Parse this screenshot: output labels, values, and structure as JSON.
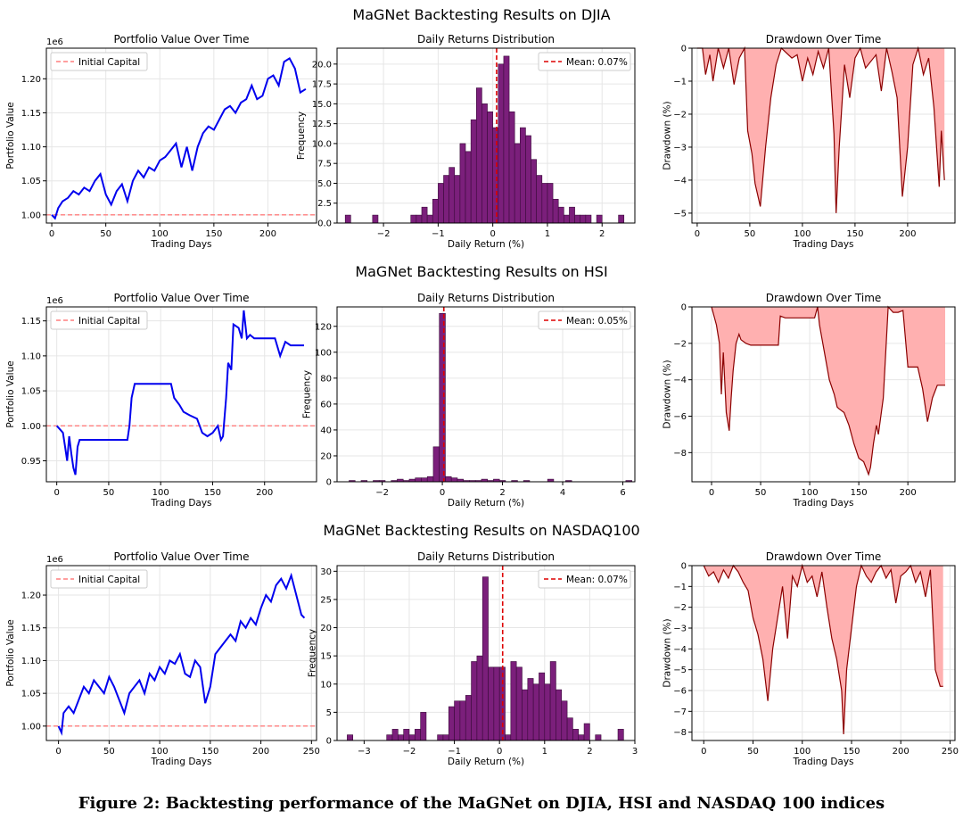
{
  "caption": "Figure 2: Backtesting performance of the MaGNet on DJIA, HSI and NASDAQ 100 indices",
  "colors": {
    "portfolio": "#0000ee",
    "initial": "#ff7f7f",
    "hist_fill": "#7b1f7b",
    "hist_edge": "#3a0a3a",
    "mean": "#dd0000",
    "drawdown_fill": "#ffb0b0",
    "drawdown_line": "#8b0000"
  },
  "rows": [
    {
      "title": "MaGNet Backtesting Results on DJIA",
      "portfolio": {
        "title": "Portfolio Value Over Time",
        "xlabel": "Trading Days",
        "ylabel": "Portfolio Value",
        "offset_label": "1e6",
        "legend": "Initial Capital",
        "xlim": [
          -5,
          245
        ],
        "ylim": [
          0.988,
          1.245
        ],
        "xticks": [
          "0",
          "50",
          "100",
          "150",
          "200"
        ],
        "yticks": [
          "1.00",
          "1.05",
          "1.10",
          "1.15",
          "1.20"
        ],
        "initial": 1.0
      },
      "returns": {
        "title": "Daily Returns Distribution",
        "xlabel": "Daily Return (%)",
        "ylabel": "Frequency",
        "legend": "Mean: 0.07%",
        "mean": 0.07,
        "xlim": [
          -2.85,
          2.6
        ],
        "ylim": [
          0,
          22
        ],
        "xticks": [
          "−2",
          "−1",
          "0",
          "1",
          "2"
        ],
        "yticks": [
          "0.0",
          "2.5",
          "5.0",
          "7.5",
          "10.0",
          "12.5",
          "15.0",
          "17.5",
          "20.0"
        ]
      },
      "drawdown": {
        "title": "Drawdown Over Time",
        "xlabel": "Trading Days",
        "ylabel": "Drawdown (%)",
        "xlim": [
          -5,
          245
        ],
        "ylim": [
          -5.3,
          0
        ],
        "xticks": [
          "0",
          "50",
          "100",
          "150",
          "200"
        ],
        "yticks": [
          "0",
          "−1",
          "−2",
          "−3",
          "−4",
          "−5"
        ]
      }
    },
    {
      "title": "MaGNet Backtesting Results on HSI",
      "portfolio": {
        "title": "Portfolio Value Over Time",
        "xlabel": "Trading Days",
        "ylabel": "Portfolio Value",
        "offset_label": "1e6",
        "legend": "Initial Capital",
        "xlim": [
          -10,
          250
        ],
        "ylim": [
          0.92,
          1.17
        ],
        "xticks": [
          "0",
          "50",
          "100",
          "150",
          "200"
        ],
        "yticks": [
          "0.95",
          "1.00",
          "1.05",
          "1.10",
          "1.15"
        ],
        "initial": 1.0
      },
      "returns": {
        "title": "Daily Returns Distribution",
        "xlabel": "Daily Return (%)",
        "ylabel": "Frequency",
        "legend": "Mean: 0.05%",
        "mean": 0.05,
        "xlim": [
          -3.5,
          6.4
        ],
        "ylim": [
          0,
          135
        ],
        "xticks": [
          "−2",
          "0",
          "2",
          "4",
          "6"
        ],
        "yticks": [
          "0",
          "20",
          "40",
          "60",
          "80",
          "100",
          "120"
        ]
      },
      "drawdown": {
        "title": "Drawdown Over Time",
        "xlabel": "Trading Days",
        "ylabel": "Drawdown (%)",
        "xlim": [
          -20,
          248
        ],
        "ylim": [
          -9.6,
          0
        ],
        "xticks": [
          "0",
          "50",
          "100",
          "150",
          "200"
        ],
        "yticks": [
          "0",
          "−2",
          "−4",
          "−6",
          "−8"
        ]
      }
    },
    {
      "title": "MaGNet Backtesting Results on NASDAQ100",
      "portfolio": {
        "title": "Portfolio Value Over Time",
        "xlabel": "Trading Days",
        "ylabel": "Portfolio Value",
        "offset_label": "1e6",
        "legend": "Initial Capital",
        "xlim": [
          -12,
          255
        ],
        "ylim": [
          0.978,
          1.245
        ],
        "xticks": [
          "0",
          "50",
          "100",
          "150",
          "200",
          "250"
        ],
        "yticks": [
          "1.00",
          "1.05",
          "1.10",
          "1.15",
          "1.20"
        ],
        "initial": 1.0
      },
      "returns": {
        "title": "Daily Returns Distribution",
        "xlabel": "Daily Return (%)",
        "ylabel": "Frequency",
        "legend": "Mean: 0.07%",
        "mean": 0.07,
        "xlim": [
          -3.6,
          3.0
        ],
        "ylim": [
          0,
          31
        ],
        "xticks": [
          "−3",
          "−2",
          "−1",
          "0",
          "1",
          "2",
          "3"
        ],
        "yticks": [
          "0",
          "5",
          "10",
          "15",
          "20",
          "25",
          "30"
        ]
      },
      "drawdown": {
        "title": "Drawdown Over Time",
        "xlabel": "Trading Days",
        "ylabel": "Drawdown (%)",
        "xlim": [
          -12,
          255
        ],
        "ylim": [
          -8.4,
          0
        ],
        "xticks": [
          "0",
          "50",
          "100",
          "150",
          "200",
          "250"
        ],
        "yticks": [
          "0",
          "−1",
          "−2",
          "−3",
          "−4",
          "−5",
          "−6",
          "−7",
          "−8"
        ]
      }
    }
  ],
  "chart_data": [
    {
      "type": "line",
      "x": [
        0,
        3,
        6,
        10,
        15,
        20,
        25,
        30,
        35,
        40,
        45,
        50,
        55,
        60,
        65,
        70,
        75,
        80,
        85,
        90,
        95,
        100,
        105,
        110,
        115,
        120,
        125,
        130,
        135,
        140,
        145,
        150,
        155,
        160,
        165,
        170,
        175,
        180,
        185,
        190,
        195,
        200,
        205,
        210,
        215,
        220,
        225,
        230,
        235
      ],
      "series": [
        {
          "values": [
            1.0,
            0.995,
            1.01,
            1.02,
            1.025,
            1.035,
            1.03,
            1.04,
            1.035,
            1.05,
            1.06,
            1.03,
            1.015,
            1.035,
            1.045,
            1.02,
            1.05,
            1.065,
            1.055,
            1.07,
            1.065,
            1.08,
            1.085,
            1.095,
            1.105,
            1.07,
            1.1,
            1.065,
            1.1,
            1.12,
            1.13,
            1.125,
            1.14,
            1.155,
            1.16,
            1.15,
            1.165,
            1.17,
            1.19,
            1.17,
            1.175,
            1.2,
            1.205,
            1.19,
            1.225,
            1.23,
            1.215,
            1.18,
            1.185
          ]
        }
      ]
    },
    {
      "type": "bar",
      "bin_width": 0.1,
      "bin_starts": [
        -2.7,
        -2.2,
        -1.5,
        -1.4,
        -1.3,
        -1.2,
        -1.1,
        -1.0,
        -0.9,
        -0.8,
        -0.7,
        -0.6,
        -0.5,
        -0.4,
        -0.3,
        -0.2,
        -0.1,
        0.0,
        0.1,
        0.2,
        0.3,
        0.4,
        0.5,
        0.6,
        0.7,
        0.8,
        0.9,
        1.0,
        1.1,
        1.2,
        1.3,
        1.4,
        1.5,
        1.6,
        1.7,
        1.9,
        2.3
      ],
      "values": [
        1,
        1,
        1,
        1,
        2,
        1,
        3,
        5,
        6,
        7,
        6,
        10,
        9,
        13,
        17,
        15,
        14,
        12,
        20,
        21,
        14,
        10,
        12,
        11,
        8,
        6,
        5,
        5,
        3,
        2,
        1,
        2,
        1,
        1,
        1,
        1,
        1
      ]
    },
    {
      "type": "area",
      "x": [
        0,
        5,
        8,
        12,
        15,
        20,
        25,
        30,
        35,
        40,
        45,
        48,
        52,
        55,
        60,
        65,
        70,
        75,
        80,
        90,
        95,
        100,
        105,
        110,
        115,
        120,
        125,
        130,
        132,
        135,
        140,
        145,
        150,
        155,
        160,
        170,
        175,
        180,
        185,
        190,
        195,
        200,
        205,
        210,
        215,
        220,
        225,
        230,
        232,
        235
      ],
      "series": [
        {
          "values": [
            0,
            0,
            -0.8,
            -0.2,
            -1.0,
            0,
            -0.6,
            0,
            -1.1,
            -0.3,
            0,
            -2.5,
            -3.2,
            -4.1,
            -4.8,
            -3.0,
            -1.5,
            -0.5,
            0,
            -0.3,
            -0.2,
            -1.0,
            -0.3,
            -0.8,
            -0.1,
            -0.6,
            0,
            -2.6,
            -5.0,
            -3.0,
            -0.5,
            -1.5,
            -0.3,
            0,
            -0.6,
            -0.2,
            -1.3,
            0,
            -0.7,
            -1.5,
            -4.5,
            -3.0,
            -0.5,
            0,
            -0.8,
            -0.3,
            -1.8,
            -4.2,
            -2.5,
            -4.0
          ]
        }
      ]
    },
    {
      "type": "line",
      "x": [
        0,
        3,
        6,
        8,
        10,
        12,
        14,
        16,
        18,
        20,
        22,
        25,
        30,
        40,
        50,
        60,
        68,
        70,
        72,
        75,
        80,
        85,
        90,
        95,
        100,
        105,
        110,
        113,
        118,
        122,
        128,
        135,
        140,
        145,
        150,
        155,
        158,
        160,
        163,
        165,
        168,
        170,
        175,
        178,
        180,
        183,
        186,
        190,
        195,
        200,
        205,
        210,
        215,
        220,
        225,
        230,
        238
      ],
      "series": [
        {
          "values": [
            1.0,
            0.995,
            0.99,
            0.97,
            0.95,
            0.985,
            0.96,
            0.94,
            0.93,
            0.97,
            0.98,
            0.98,
            0.98,
            0.98,
            0.98,
            0.98,
            0.98,
            1.0,
            1.04,
            1.06,
            1.06,
            1.06,
            1.06,
            1.06,
            1.06,
            1.06,
            1.06,
            1.04,
            1.03,
            1.02,
            1.015,
            1.01,
            0.99,
            0.985,
            0.99,
            1.0,
            0.98,
            0.985,
            1.04,
            1.09,
            1.08,
            1.145,
            1.14,
            1.125,
            1.165,
            1.125,
            1.13,
            1.125,
            1.125,
            1.125,
            1.125,
            1.125,
            1.1,
            1.12,
            1.115,
            1.115,
            1.115
          ]
        }
      ]
    },
    {
      "type": "bar",
      "bin_width": 0.2,
      "bin_starts": [
        -3.1,
        -2.7,
        -2.3,
        -2.1,
        -1.7,
        -1.5,
        -1.3,
        -1.1,
        -0.9,
        -0.7,
        -0.5,
        -0.3,
        -0.1,
        0.1,
        0.3,
        0.5,
        0.7,
        0.9,
        1.1,
        1.3,
        1.5,
        1.7,
        1.9,
        2.3,
        2.7,
        3.5,
        4.1,
        6.1
      ],
      "values": [
        1,
        1,
        1,
        1,
        1,
        2,
        1,
        2,
        3,
        3,
        4,
        27,
        130,
        4,
        3,
        2,
        1,
        1,
        1,
        2,
        1,
        2,
        1,
        1,
        1,
        2,
        1,
        1
      ]
    },
    {
      "type": "area",
      "x": [
        0,
        5,
        8,
        10,
        12,
        15,
        18,
        20,
        22,
        25,
        28,
        30,
        35,
        40,
        45,
        50,
        55,
        60,
        68,
        70,
        75,
        80,
        90,
        100,
        105,
        108,
        110,
        115,
        120,
        125,
        128,
        130,
        135,
        140,
        145,
        150,
        155,
        160,
        162,
        165,
        168,
        170,
        175,
        180,
        185,
        190,
        195,
        200,
        205,
        210,
        215,
        220,
        225,
        230,
        238
      ],
      "series": [
        {
          "values": [
            0,
            -1.0,
            -2.0,
            -4.8,
            -2.5,
            -5.8,
            -6.8,
            -5.0,
            -3.5,
            -2.0,
            -1.5,
            -1.8,
            -2.0,
            -2.1,
            -2.1,
            -2.1,
            -2.1,
            -2.1,
            -2.1,
            -0.5,
            -0.6,
            -0.6,
            -0.6,
            -0.6,
            -0.6,
            0,
            -1.0,
            -2.5,
            -4.0,
            -4.8,
            -5.5,
            -5.6,
            -5.8,
            -6.5,
            -7.5,
            -8.3,
            -8.5,
            -9.2,
            -8.8,
            -7.5,
            -6.5,
            -7.0,
            -5.0,
            0,
            -0.3,
            -0.3,
            -0.2,
            -3.3,
            -3.3,
            -3.3,
            -4.5,
            -6.3,
            -5.0,
            -4.3,
            -4.3
          ]
        }
      ]
    },
    {
      "type": "line",
      "x": [
        0,
        3,
        5,
        10,
        15,
        20,
        25,
        30,
        35,
        40,
        45,
        50,
        55,
        60,
        65,
        70,
        75,
        80,
        85,
        90,
        95,
        100,
        105,
        110,
        115,
        120,
        125,
        130,
        135,
        140,
        145,
        150,
        155,
        160,
        165,
        170,
        175,
        180,
        185,
        190,
        195,
        200,
        205,
        210,
        215,
        220,
        225,
        230,
        235,
        240,
        243
      ],
      "series": [
        {
          "values": [
            1.0,
            0.99,
            1.02,
            1.03,
            1.02,
            1.04,
            1.06,
            1.05,
            1.07,
            1.06,
            1.05,
            1.075,
            1.06,
            1.04,
            1.02,
            1.05,
            1.06,
            1.07,
            1.05,
            1.08,
            1.07,
            1.09,
            1.08,
            1.1,
            1.095,
            1.11,
            1.08,
            1.075,
            1.1,
            1.09,
            1.035,
            1.06,
            1.11,
            1.12,
            1.13,
            1.14,
            1.13,
            1.16,
            1.15,
            1.165,
            1.155,
            1.18,
            1.2,
            1.19,
            1.215,
            1.225,
            1.21,
            1.23,
            1.2,
            1.17,
            1.165
          ]
        }
      ]
    },
    {
      "type": "bar",
      "bin_width": 0.125,
      "bin_starts": [
        -3.375,
        -2.5,
        -2.375,
        -2.25,
        -2.125,
        -2.0,
        -1.875,
        -1.75,
        -1.375,
        -1.25,
        -1.125,
        -1.0,
        -0.875,
        -0.75,
        -0.625,
        -0.5,
        -0.375,
        -0.25,
        -0.125,
        0.0,
        0.125,
        0.25,
        0.375,
        0.5,
        0.625,
        0.75,
        0.875,
        1.0,
        1.125,
        1.25,
        1.375,
        1.5,
        1.625,
        1.75,
        1.875,
        2.125,
        2.625
      ],
      "values": [
        1,
        1,
        2,
        1,
        2,
        1,
        2,
        5,
        1,
        1,
        6,
        7,
        7,
        8,
        14,
        15,
        29,
        13,
        13,
        13,
        1,
        14,
        13,
        9,
        11,
        10,
        12,
        10,
        14,
        9,
        7,
        4,
        2,
        1,
        3,
        1,
        2
      ]
    },
    {
      "type": "area",
      "x": [
        0,
        5,
        10,
        15,
        20,
        25,
        30,
        35,
        40,
        45,
        50,
        55,
        60,
        65,
        70,
        75,
        80,
        85,
        90,
        95,
        100,
        105,
        110,
        115,
        120,
        125,
        130,
        135,
        140,
        142,
        145,
        150,
        155,
        160,
        165,
        170,
        175,
        180,
        185,
        190,
        195,
        200,
        205,
        210,
        215,
        220,
        225,
        230,
        235,
        240,
        243
      ],
      "series": [
        {
          "values": [
            0,
            -0.5,
            -0.3,
            -0.8,
            -0.2,
            -0.6,
            0,
            -0.3,
            -0.8,
            -1.2,
            -2.5,
            -3.3,
            -4.5,
            -6.5,
            -4.0,
            -2.5,
            -1.0,
            -3.5,
            -0.5,
            -1.0,
            0,
            -0.8,
            -0.5,
            -1.5,
            -0.3,
            -2.0,
            -3.5,
            -4.5,
            -6.0,
            -8.1,
            -5.0,
            -3.0,
            -1.0,
            0,
            -0.5,
            -0.8,
            -0.3,
            0,
            -0.6,
            -0.2,
            -1.8,
            -0.5,
            -0.3,
            0,
            -0.8,
            -0.3,
            -1.5,
            -0.2,
            -5.0,
            -5.8,
            -5.8
          ]
        }
      ]
    }
  ]
}
